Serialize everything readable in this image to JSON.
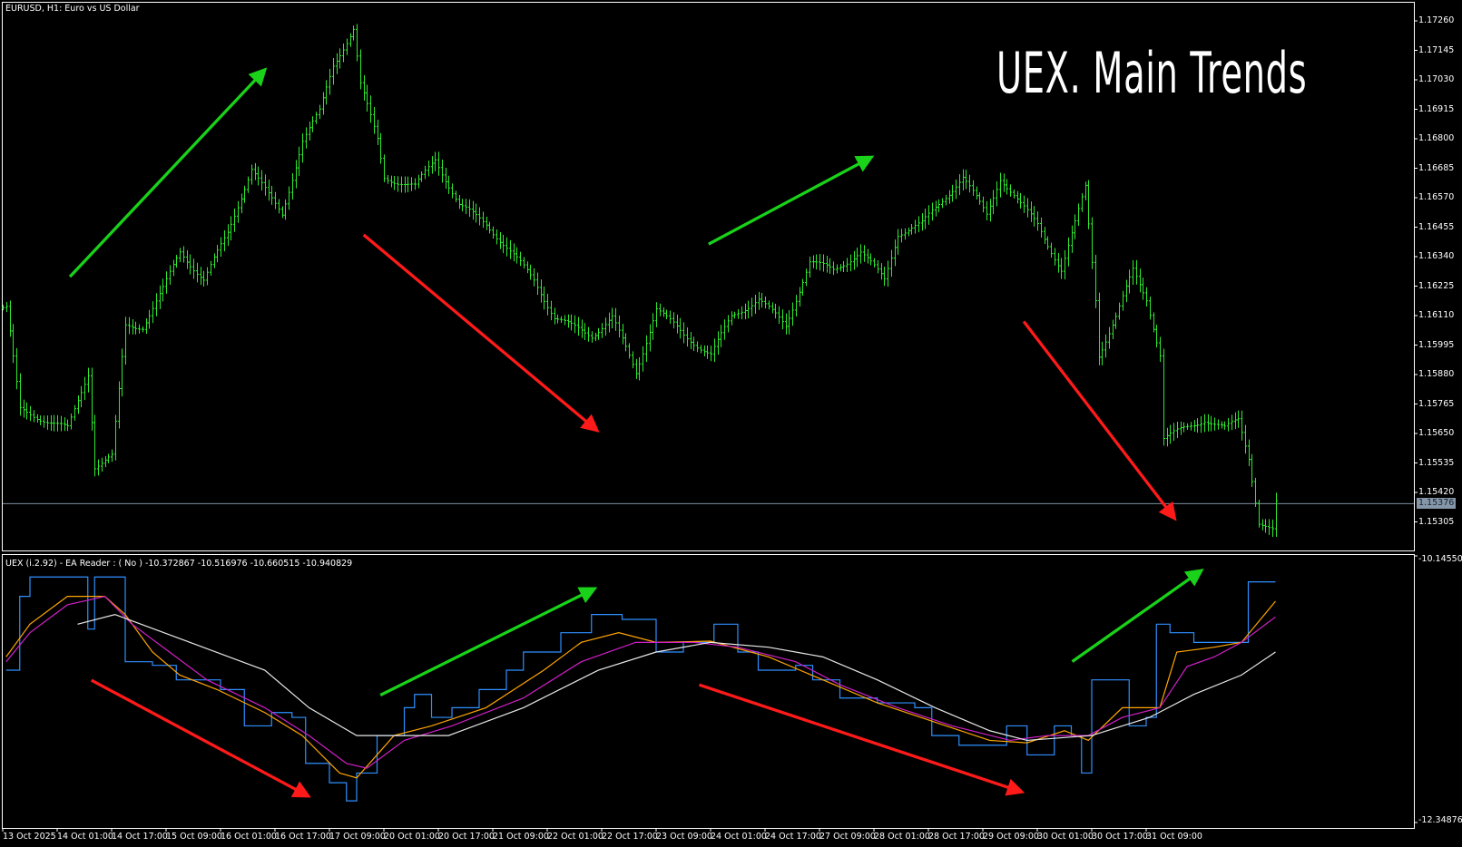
{
  "window": {
    "symbol_label": "EURUSD, H1:  Euro vs US Dollar"
  },
  "overlay_title": "UEX. Main Trends",
  "indicator": {
    "label": "UEX (i.2.92) - EA Reader : ( No ) -10.372867 -10.516976 -10.660515 -10.940829"
  },
  "colors": {
    "bars": "#2ee82e",
    "blue": "#2f8fff",
    "orange": "#ffa500",
    "magenta": "#d020c8",
    "white": "#e8e8e8",
    "up_arrow": "#19d219",
    "down_arrow": "#ff1a1a",
    "current_price_bg": "#8496a8"
  },
  "chart_data": [
    {
      "type": "line",
      "title": "",
      "price_axis_ticks": [
        "1.17260",
        "1.17145",
        "1.17030",
        "1.16915",
        "1.16800",
        "1.16685",
        "1.16570",
        "1.16455",
        "1.16340",
        "1.16225",
        "1.16110",
        "1.15995",
        "1.15880",
        "1.15765",
        "1.15650",
        "1.15535",
        "1.15420",
        "1.15305"
      ],
      "ylim": [
        1.15305,
        1.1726
      ],
      "current_price": "1.15376",
      "time_axis_ticks": [
        "13 Oct 2025",
        "14 Oct 01:00",
        "14 Oct 17:00",
        "15 Oct 09:00",
        "16 Oct 01:00",
        "16 Oct 17:00",
        "17 Oct 09:00",
        "20 Oct 01:00",
        "20 Oct 17:00",
        "21 Oct 09:00",
        "22 Oct 01:00",
        "22 Oct 17:00",
        "23 Oct 09:00",
        "24 Oct 01:00",
        "24 Oct 17:00",
        "27 Oct 09:00",
        "28 Oct 01:00",
        "28 Oct 17:00",
        "29 Oct 09:00",
        "30 Oct 01:00",
        "30 Oct 17:00",
        "31 Oct 09:00"
      ],
      "bars_per_tick": 16,
      "price_path": [
        [
          1,
          1.16141
        ],
        [
          5,
          1.15741
        ],
        [
          12,
          1.15705
        ],
        [
          19,
          1.15668
        ],
        [
          25,
          1.15886
        ],
        [
          27,
          1.15523
        ],
        [
          32,
          1.15559
        ],
        [
          36,
          1.16068
        ],
        [
          41,
          1.16068
        ],
        [
          47,
          1.16213
        ],
        [
          52,
          1.16359
        ],
        [
          59,
          1.1625
        ],
        [
          66,
          1.16431
        ],
        [
          73,
          1.16686
        ],
        [
          78,
          1.16577
        ],
        [
          82,
          1.16504
        ],
        [
          88,
          1.16795
        ],
        [
          93,
          1.16904
        ],
        [
          97,
          1.17086
        ],
        [
          103,
          1.17231
        ],
        [
          105,
          1.17013
        ],
        [
          110,
          1.16795
        ],
        [
          112,
          1.16649
        ],
        [
          121,
          1.16613
        ],
        [
          127,
          1.16722
        ],
        [
          134,
          1.16541
        ],
        [
          142,
          1.16468
        ],
        [
          149,
          1.16359
        ],
        [
          156,
          1.1625
        ],
        [
          162,
          1.16104
        ],
        [
          167,
          1.16068
        ],
        [
          173,
          1.16032
        ],
        [
          179,
          1.16104
        ],
        [
          186,
          1.15886
        ],
        [
          192,
          1.16141
        ],
        [
          200,
          1.16032
        ],
        [
          208,
          1.15959
        ],
        [
          214,
          1.16104
        ],
        [
          222,
          1.16177
        ],
        [
          230,
          1.16068
        ],
        [
          237,
          1.16322
        ],
        [
          244,
          1.16286
        ],
        [
          252,
          1.16359
        ],
        [
          259,
          1.1625
        ],
        [
          263,
          1.16431
        ],
        [
          270,
          1.16468
        ],
        [
          277,
          1.16577
        ],
        [
          282,
          1.16649
        ],
        [
          289,
          1.16504
        ],
        [
          293,
          1.16649
        ],
        [
          299,
          1.16541
        ],
        [
          304,
          1.16468
        ],
        [
          311,
          1.16286
        ],
        [
          315,
          1.16468
        ],
        [
          318,
          1.16613
        ],
        [
          321,
          1.16177
        ],
        [
          322,
          1.15959
        ],
        [
          327,
          1.16104
        ],
        [
          332,
          1.16286
        ],
        [
          336,
          1.16177
        ],
        [
          340,
          1.15959
        ],
        [
          341,
          1.15632
        ],
        [
          347,
          1.15668
        ],
        [
          353,
          1.15705
        ],
        [
          359,
          1.15668
        ],
        [
          363,
          1.15705
        ],
        [
          366,
          1.15559
        ],
        [
          369,
          1.15305
        ],
        [
          373,
          1.15269
        ],
        [
          374,
          1.15376
        ]
      ]
    },
    {
      "type": "line",
      "ylim": [
        -12.348768,
        -10.145509
      ],
      "axis_ticks": [
        "-10.145509",
        "-12.348768"
      ],
      "series": [
        {
          "color": "blue",
          "step": true,
          "points": [
            [
              1,
              -11.09
            ],
            [
              5,
              -10.48
            ],
            [
              8,
              -10.32
            ],
            [
              21,
              -10.32
            ],
            [
              25,
              -10.75
            ],
            [
              27,
              -10.32
            ],
            [
              33,
              -10.32
            ],
            [
              36,
              -11.02
            ],
            [
              44,
              -11.05
            ],
            [
              51,
              -11.17
            ],
            [
              58,
              -11.17
            ],
            [
              64,
              -11.25
            ],
            [
              71,
              -11.55
            ],
            [
              79,
              -11.44
            ],
            [
              85,
              -11.48
            ],
            [
              89,
              -11.86
            ],
            [
              96,
              -12.02
            ],
            [
              101,
              -12.17
            ],
            [
              104,
              -11.94
            ],
            [
              110,
              -11.63
            ],
            [
              118,
              -11.4
            ],
            [
              121,
              -11.29
            ],
            [
              126,
              -11.48
            ],
            [
              132,
              -11.4
            ],
            [
              140,
              -11.25
            ],
            [
              148,
              -11.09
            ],
            [
              153,
              -10.94
            ],
            [
              164,
              -10.78
            ],
            [
              173,
              -10.63
            ],
            [
              182,
              -10.67
            ],
            [
              186,
              -10.67
            ],
            [
              192,
              -10.94
            ],
            [
              200,
              -10.86
            ],
            [
              209,
              -10.71
            ],
            [
              216,
              -10.94
            ],
            [
              222,
              -11.09
            ],
            [
              233,
              -11.05
            ],
            [
              238,
              -11.17
            ],
            [
              246,
              -11.32
            ],
            [
              257,
              -11.36
            ],
            [
              268,
              -11.4
            ],
            [
              273,
              -11.63
            ],
            [
              281,
              -11.71
            ],
            [
              290,
              -11.71
            ],
            [
              295,
              -11.55
            ],
            [
              301,
              -11.79
            ],
            [
              309,
              -11.55
            ],
            [
              314,
              -11.63
            ],
            [
              317,
              -11.94
            ],
            [
              320,
              -11.17
            ],
            [
              325,
              -11.17
            ],
            [
              331,
              -11.55
            ],
            [
              336,
              -11.48
            ],
            [
              339,
              -10.71
            ],
            [
              343,
              -10.78
            ],
            [
              350,
              -10.86
            ],
            [
              356,
              -10.86
            ],
            [
              364,
              -10.86
            ],
            [
              366,
              -10.36
            ],
            [
              374,
              -10.36
            ]
          ]
        },
        {
          "color": "orange",
          "points": [
            [
              1,
              -10.98
            ],
            [
              8,
              -10.71
            ],
            [
              19,
              -10.48
            ],
            [
              30,
              -10.48
            ],
            [
              36,
              -10.63
            ],
            [
              44,
              -10.94
            ],
            [
              52,
              -11.13
            ],
            [
              63,
              -11.25
            ],
            [
              77,
              -11.44
            ],
            [
              88,
              -11.63
            ],
            [
              99,
              -11.94
            ],
            [
              104,
              -11.98
            ],
            [
              115,
              -11.63
            ],
            [
              126,
              -11.55
            ],
            [
              142,
              -11.4
            ],
            [
              159,
              -11.09
            ],
            [
              170,
              -10.86
            ],
            [
              181,
              -10.78
            ],
            [
              192,
              -10.86
            ],
            [
              208,
              -10.85
            ],
            [
              225,
              -10.98
            ],
            [
              241,
              -11.17
            ],
            [
              257,
              -11.36
            ],
            [
              274,
              -11.52
            ],
            [
              290,
              -11.67
            ],
            [
              301,
              -11.69
            ],
            [
              312,
              -11.59
            ],
            [
              319,
              -11.67
            ],
            [
              329,
              -11.4
            ],
            [
              340,
              -11.4
            ],
            [
              345,
              -10.94
            ],
            [
              356,
              -10.9
            ],
            [
              364,
              -10.86
            ],
            [
              374,
              -10.52
            ]
          ]
        },
        {
          "color": "magenta",
          "points": [
            [
              1,
              -11.02
            ],
            [
              8,
              -10.78
            ],
            [
              19,
              -10.55
            ],
            [
              30,
              -10.48
            ],
            [
              38,
              -10.71
            ],
            [
              49,
              -10.94
            ],
            [
              60,
              -11.17
            ],
            [
              77,
              -11.4
            ],
            [
              90,
              -11.63
            ],
            [
              101,
              -11.86
            ],
            [
              107,
              -11.9
            ],
            [
              118,
              -11.67
            ],
            [
              132,
              -11.55
            ],
            [
              153,
              -11.32
            ],
            [
              170,
              -11.02
            ],
            [
              186,
              -10.86
            ],
            [
              203,
              -10.86
            ],
            [
              216,
              -10.9
            ],
            [
              233,
              -11.02
            ],
            [
              246,
              -11.21
            ],
            [
              263,
              -11.4
            ],
            [
              279,
              -11.55
            ],
            [
              296,
              -11.67
            ],
            [
              307,
              -11.63
            ],
            [
              319,
              -11.63
            ],
            [
              329,
              -11.48
            ],
            [
              340,
              -11.4
            ],
            [
              348,
              -11.06
            ],
            [
              356,
              -10.98
            ],
            [
              364,
              -10.86
            ],
            [
              374,
              -10.65
            ]
          ]
        },
        {
          "color": "white",
          "points": [
            [
              22,
              -10.71
            ],
            [
              33,
              -10.63
            ],
            [
              55,
              -10.86
            ],
            [
              77,
              -11.09
            ],
            [
              90,
              -11.4
            ],
            [
              104,
              -11.63
            ],
            [
              115,
              -11.63
            ],
            [
              131,
              -11.63
            ],
            [
              153,
              -11.4
            ],
            [
              175,
              -11.09
            ],
            [
              192,
              -10.94
            ],
            [
              208,
              -10.86
            ],
            [
              225,
              -10.9
            ],
            [
              241,
              -10.98
            ],
            [
              257,
              -11.17
            ],
            [
              274,
              -11.4
            ],
            [
              290,
              -11.59
            ],
            [
              301,
              -11.67
            ],
            [
              320,
              -11.63
            ],
            [
              337,
              -11.48
            ],
            [
              350,
              -11.29
            ],
            [
              364,
              -11.13
            ],
            [
              374,
              -10.94
            ]
          ]
        }
      ]
    }
  ]
}
